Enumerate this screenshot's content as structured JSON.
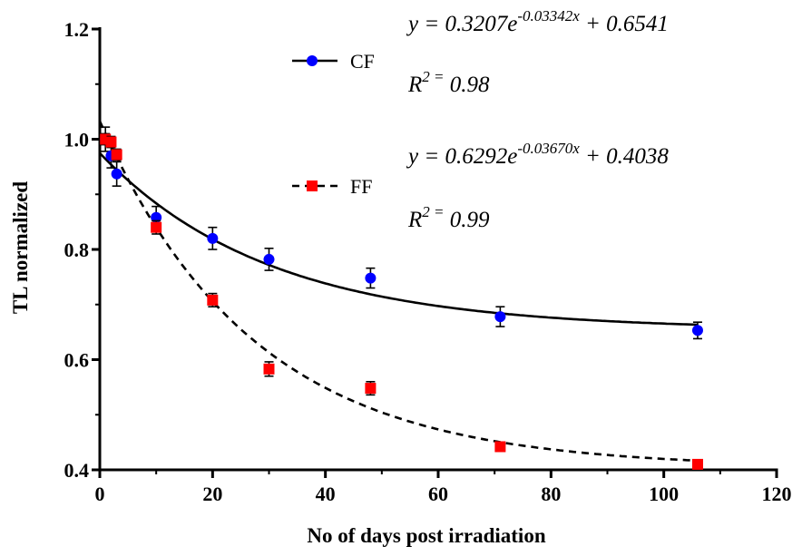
{
  "chart_data": {
    "type": "scatter",
    "title": "",
    "xlabel": "No of days post irradiation",
    "ylabel": "TL normalized",
    "xlim": [
      0,
      120
    ],
    "ylim": [
      0.4,
      1.2
    ],
    "x_ticks": [
      0,
      20,
      40,
      60,
      80,
      100,
      120
    ],
    "x_tick_labels": [
      "0",
      "20",
      "40",
      "60",
      "80",
      "100",
      "120"
    ],
    "y_ticks": [
      0.4,
      0.6,
      0.8,
      1.0,
      1.2
    ],
    "y_tick_labels": [
      "0.4",
      "0.6",
      "0.8",
      "1.0",
      "1.2"
    ],
    "grid": false,
    "legend_position": "top-center",
    "series": [
      {
        "name": "CF",
        "marker": "circle",
        "color": "#0000ff",
        "line_style": "solid",
        "x": [
          1,
          2,
          3,
          10,
          20,
          30,
          48,
          71,
          106
        ],
        "y": [
          1.0,
          0.97,
          0.937,
          0.858,
          0.82,
          0.782,
          0.748,
          0.678,
          0.653
        ],
        "err": [
          0.022,
          0.022,
          0.022,
          0.02,
          0.02,
          0.02,
          0.018,
          0.018,
          0.015
        ],
        "fit": {
          "a": 0.3207,
          "b": -0.03342,
          "c": 0.6541
        },
        "equation": {
          "lhs": "y = 0.3207e",
          "exp": "-0.03342x",
          "rhs": " + 0.6541"
        },
        "r2": {
          "base": "R",
          "sup": "2 =",
          "value": " 0.98"
        }
      },
      {
        "name": "FF",
        "marker": "square",
        "color": "#ff0000",
        "line_style": "dashed",
        "x": [
          1,
          2,
          3,
          10,
          20,
          30,
          48,
          71,
          106
        ],
        "y": [
          1.0,
          0.995,
          0.972,
          0.84,
          0.708,
          0.583,
          0.548,
          0.442,
          0.41
        ],
        "err": [
          0.01,
          0.01,
          0.01,
          0.012,
          0.012,
          0.013,
          0.012,
          0.006,
          0.006
        ],
        "fit": {
          "a": 0.6292,
          "b": -0.0367,
          "c": 0.4038
        },
        "equation": {
          "lhs": "y = 0.6292e",
          "exp": "-0.03670x",
          "rhs": " + 0.4038"
        },
        "r2": {
          "base": "R",
          "sup": "2 =",
          "value": " 0.99"
        }
      }
    ]
  }
}
